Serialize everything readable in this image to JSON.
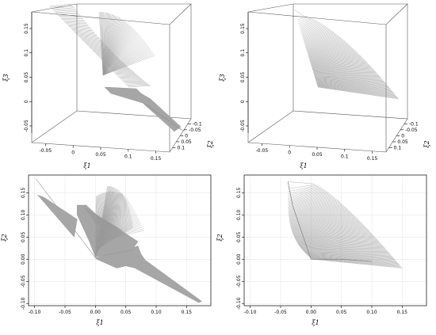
{
  "chart_data": [
    {
      "type": "scatter",
      "panel": "3d-left",
      "xlabel": "ξ1",
      "ylabel": "ξ3",
      "zlabel": "ξ2",
      "x_ticks": [
        "-0.05",
        "0",
        "0.05",
        "0.1",
        "0.15"
      ],
      "y_ticks": [
        "0.15",
        "0.1",
        "0.05",
        "0",
        "-0.05"
      ],
      "z_ticks": [
        "-0.1",
        "-0.05",
        "0",
        "0.05",
        "0.1"
      ],
      "color": "#999999"
    },
    {
      "type": "scatter",
      "panel": "3d-right",
      "xlabel": "ξ1",
      "ylabel": "ξ3",
      "zlabel": "ξ2",
      "x_ticks": [
        "-0.05",
        "0",
        "0.05",
        "0.1",
        "0.15"
      ],
      "y_ticks": [
        "0.15",
        "0.1",
        "0.05",
        "0",
        "-0.05"
      ],
      "z_ticks": [
        "-0.1",
        "-0.05",
        "0",
        "0.05",
        "0.1"
      ],
      "color": "#999999"
    },
    {
      "type": "scatter",
      "panel": "2d-left",
      "xlabel": "ξ1",
      "ylabel": "ξ2",
      "xlim": [
        -0.11,
        0.19
      ],
      "ylim": [
        -0.105,
        0.19
      ],
      "x_ticks": [
        "-0.10",
        "-0.05",
        "0.00",
        "0.05",
        "0.10",
        "0.15"
      ],
      "y_ticks": [
        "0.15",
        "0.10",
        "0.05",
        "0.00",
        "-0.05",
        "-0.10"
      ],
      "grid": true,
      "color": "#999999"
    },
    {
      "type": "scatter",
      "panel": "2d-right",
      "xlabel": "ξ1",
      "ylabel": "ξ2",
      "xlim": [
        -0.11,
        0.19
      ],
      "ylim": [
        -0.105,
        0.19
      ],
      "x_ticks": [
        "-0.10",
        "-0.05",
        "0.00",
        "0.05",
        "0.10",
        "0.15"
      ],
      "y_ticks": [
        "0.15",
        "0.10",
        "0.05",
        "0.00",
        "-0.05",
        "-0.10"
      ],
      "grid": true,
      "color": "#999999"
    }
  ]
}
